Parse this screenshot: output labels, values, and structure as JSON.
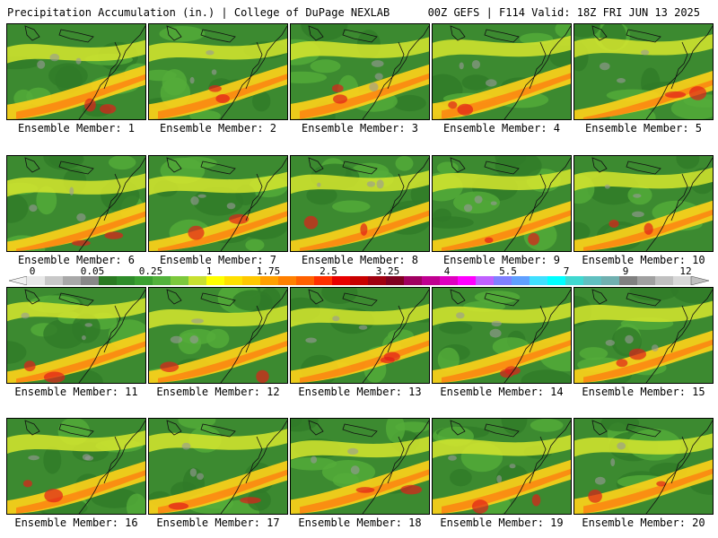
{
  "header": {
    "left": "Precipitation Accumulation (in.) | College of DuPage NEXLAB",
    "right": "00Z GEFS | F114 Valid: 18Z FRI JUN 13 2025"
  },
  "colorbar": {
    "tick_labels": [
      "0",
      "0.05",
      "0.25",
      "1",
      "1.75",
      "2.5",
      "3.25",
      "4",
      "5.5",
      "7",
      "9",
      "12"
    ],
    "colors": [
      "#e8e8e8",
      "#c8c8c8",
      "#a8a8a8",
      "#888888",
      "#2a7a22",
      "#2e8c2a",
      "#3aa030",
      "#52b23c",
      "#7cc83c",
      "#c8e030",
      "#ffff00",
      "#ffe000",
      "#ffc800",
      "#ffa000",
      "#ff8000",
      "#ff6000",
      "#ff3000",
      "#e80000",
      "#c80000",
      "#a00010",
      "#800020",
      "#a00060",
      "#c00090",
      "#e000c0",
      "#ff00ff",
      "#c060ff",
      "#8080ff",
      "#60a0ff",
      "#40e0ff",
      "#00ffff",
      "#40d8d0",
      "#60c0c0",
      "#70b0b0",
      "#808080",
      "#a0a0a0",
      "#c0c0c0",
      "#d8d8d8"
    ]
  },
  "panels": [
    {
      "label": "Ensemble Member: 1"
    },
    {
      "label": "Ensemble Member: 2"
    },
    {
      "label": "Ensemble Member: 3"
    },
    {
      "label": "Ensemble Member: 4"
    },
    {
      "label": "Ensemble Member: 5"
    },
    {
      "label": "Ensemble Member: 6"
    },
    {
      "label": "Ensemble Member: 7"
    },
    {
      "label": "Ensemble Member: 8"
    },
    {
      "label": "Ensemble Member: 9"
    },
    {
      "label": "Ensemble Member: 10"
    },
    {
      "label": "Ensemble Member: 11"
    },
    {
      "label": "Ensemble Member: 12"
    },
    {
      "label": "Ensemble Member: 13"
    },
    {
      "label": "Ensemble Member: 14"
    },
    {
      "label": "Ensemble Member: 15"
    },
    {
      "label": "Ensemble Member: 16"
    },
    {
      "label": "Ensemble Member: 17"
    },
    {
      "label": "Ensemble Member: 18"
    },
    {
      "label": "Ensemble Member: 19"
    },
    {
      "label": "Ensemble Member: 20"
    }
  ]
}
